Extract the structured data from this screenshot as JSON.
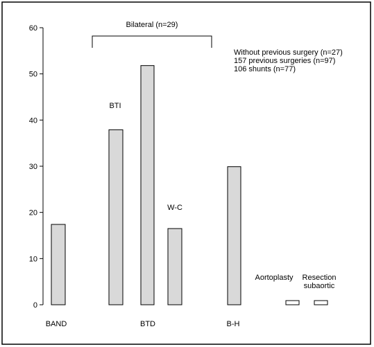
{
  "chart_data": {
    "type": "bar",
    "ylim": [
      0,
      60
    ],
    "yticks": [
      0,
      10,
      20,
      30,
      40,
      50,
      60
    ],
    "grid": false,
    "bars": [
      {
        "id": "band",
        "value": 17.4,
        "label": "",
        "x_label": "BAND"
      },
      {
        "id": "bti",
        "value": 37.9,
        "label": "BTI",
        "x_label": ""
      },
      {
        "id": "btd",
        "value": 51.8,
        "label": "",
        "x_label": "BTD"
      },
      {
        "id": "wc",
        "value": 16.5,
        "label": "W-C",
        "x_label": ""
      },
      {
        "id": "bh",
        "value": 29.9,
        "label": "",
        "x_label": "B-H"
      },
      {
        "id": "aortoplasty",
        "value": 0.9,
        "label": "Aortoplasty",
        "x_label": ""
      },
      {
        "id": "resection",
        "value": 0.9,
        "label": "Resection subaortic",
        "x_label": ""
      }
    ],
    "bracket_label": "Bilateral (n=29)",
    "legend_lines": [
      "Without previous surgery (n=27)",
      "157 previous surgeries (n=97)",
      "106 shunts (n=77)"
    ],
    "colors": {
      "bar_fill": "#d9d9d9",
      "bar_small_fill": "#ffffff",
      "stroke": "#000000",
      "frame": "#000000"
    }
  }
}
